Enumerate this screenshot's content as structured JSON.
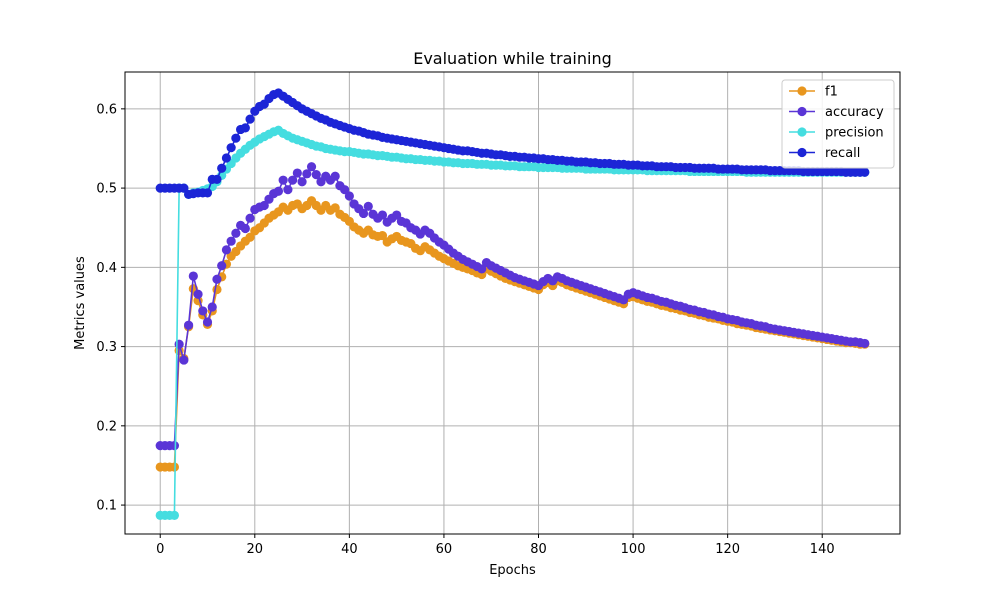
{
  "chart_data": {
    "type": "line",
    "title": "Evaluation while training",
    "xlabel": "Epochs",
    "ylabel": "Metrics values",
    "xlim": [
      -7.45,
      156.45
    ],
    "ylim": [
      0.0635,
      0.6465
    ],
    "xticks": [
      0,
      20,
      40,
      60,
      80,
      100,
      120,
      140
    ],
    "yticks": [
      0.1,
      0.2,
      0.3,
      0.4,
      0.5,
      0.6
    ],
    "grid": true,
    "legend_position": "top-right",
    "markers": "circle",
    "series": [
      {
        "name": "f1",
        "color": "#e8961e",
        "x": [
          0,
          1,
          2,
          3,
          4,
          5,
          6,
          7,
          8,
          9,
          10,
          11,
          12,
          13,
          14,
          15,
          16,
          17,
          18,
          19,
          20,
          21,
          22,
          23,
          24,
          25,
          26,
          27,
          28,
          29,
          30,
          31,
          32,
          33,
          34,
          35,
          36,
          37,
          38,
          39,
          40,
          41,
          42,
          43,
          44,
          45,
          46,
          47,
          48,
          49,
          50,
          51,
          52,
          53,
          54,
          55,
          56,
          57,
          58,
          59,
          60,
          61,
          62,
          63,
          64,
          65,
          66,
          67,
          68,
          69,
          70,
          71,
          72,
          73,
          74,
          75,
          76,
          77,
          78,
          79,
          80,
          81,
          82,
          83,
          84,
          85,
          86,
          87,
          88,
          89,
          90,
          91,
          92,
          93,
          94,
          95,
          96,
          97,
          98,
          99,
          100,
          101,
          102,
          103,
          104,
          105,
          106,
          107,
          108,
          109,
          110,
          111,
          112,
          113,
          114,
          115,
          116,
          117,
          118,
          119,
          120,
          121,
          122,
          123,
          124,
          125,
          126,
          127,
          128,
          129,
          130,
          131,
          132,
          133,
          134,
          135,
          136,
          137,
          138,
          139,
          140,
          141,
          142,
          143,
          144,
          145,
          146,
          147,
          148,
          149
        ],
        "values": [
          0.148,
          0.148,
          0.148,
          0.148,
          0.295,
          0.285,
          0.325,
          0.373,
          0.358,
          0.34,
          0.328,
          0.345,
          0.372,
          0.388,
          0.404,
          0.414,
          0.42,
          0.427,
          0.433,
          0.438,
          0.446,
          0.45,
          0.456,
          0.462,
          0.466,
          0.47,
          0.476,
          0.472,
          0.478,
          0.48,
          0.474,
          0.478,
          0.484,
          0.478,
          0.472,
          0.478,
          0.472,
          0.475,
          0.467,
          0.463,
          0.458,
          0.451,
          0.447,
          0.443,
          0.447,
          0.441,
          0.439,
          0.44,
          0.432,
          0.436,
          0.439,
          0.434,
          0.432,
          0.43,
          0.424,
          0.421,
          0.426,
          0.422,
          0.418,
          0.414,
          0.411,
          0.408,
          0.405,
          0.402,
          0.4,
          0.398,
          0.396,
          0.393,
          0.391,
          0.398,
          0.395,
          0.392,
          0.389,
          0.386,
          0.384,
          0.382,
          0.38,
          0.378,
          0.376,
          0.374,
          0.372,
          0.378,
          0.381,
          0.377,
          0.383,
          0.381,
          0.378,
          0.376,
          0.374,
          0.372,
          0.37,
          0.368,
          0.366,
          0.364,
          0.362,
          0.36,
          0.358,
          0.356,
          0.354,
          0.362,
          0.363,
          0.361,
          0.359,
          0.357,
          0.356,
          0.354,
          0.352,
          0.351,
          0.349,
          0.348,
          0.346,
          0.345,
          0.343,
          0.342,
          0.34,
          0.339,
          0.337,
          0.336,
          0.335,
          0.333,
          0.332,
          0.331,
          0.329,
          0.328,
          0.327,
          0.326,
          0.324,
          0.323,
          0.322,
          0.321,
          0.32,
          0.319,
          0.318,
          0.317,
          0.316,
          0.315,
          0.314,
          0.313,
          0.312,
          0.311,
          0.31,
          0.309,
          0.308,
          0.307,
          0.306,
          0.305,
          0.305,
          0.304,
          0.303,
          0.303
        ]
      },
      {
        "name": "accuracy",
        "color": "#5a35d6",
        "x": [
          0,
          1,
          2,
          3,
          4,
          5,
          6,
          7,
          8,
          9,
          10,
          11,
          12,
          13,
          14,
          15,
          16,
          17,
          18,
          19,
          20,
          21,
          22,
          23,
          24,
          25,
          26,
          27,
          28,
          29,
          30,
          31,
          32,
          33,
          34,
          35,
          36,
          37,
          38,
          39,
          40,
          41,
          42,
          43,
          44,
          45,
          46,
          47,
          48,
          49,
          50,
          51,
          52,
          53,
          54,
          55,
          56,
          57,
          58,
          59,
          60,
          61,
          62,
          63,
          64,
          65,
          66,
          67,
          68,
          69,
          70,
          71,
          72,
          73,
          74,
          75,
          76,
          77,
          78,
          79,
          80,
          81,
          82,
          83,
          84,
          85,
          86,
          87,
          88,
          89,
          90,
          91,
          92,
          93,
          94,
          95,
          96,
          97,
          98,
          99,
          100,
          101,
          102,
          103,
          104,
          105,
          106,
          107,
          108,
          109,
          110,
          111,
          112,
          113,
          114,
          115,
          116,
          117,
          118,
          119,
          120,
          121,
          122,
          123,
          124,
          125,
          126,
          127,
          128,
          129,
          130,
          131,
          132,
          133,
          134,
          135,
          136,
          137,
          138,
          139,
          140,
          141,
          142,
          143,
          144,
          145,
          146,
          147,
          148,
          149
        ],
        "values": [
          0.175,
          0.175,
          0.175,
          0.175,
          0.303,
          0.283,
          0.327,
          0.389,
          0.366,
          0.345,
          0.331,
          0.35,
          0.385,
          0.402,
          0.422,
          0.433,
          0.443,
          0.453,
          0.449,
          0.462,
          0.473,
          0.476,
          0.478,
          0.486,
          0.493,
          0.496,
          0.51,
          0.498,
          0.51,
          0.519,
          0.508,
          0.518,
          0.527,
          0.517,
          0.508,
          0.515,
          0.51,
          0.515,
          0.503,
          0.498,
          0.49,
          0.48,
          0.474,
          0.468,
          0.477,
          0.467,
          0.462,
          0.466,
          0.457,
          0.462,
          0.466,
          0.458,
          0.456,
          0.45,
          0.447,
          0.442,
          0.447,
          0.443,
          0.437,
          0.432,
          0.428,
          0.423,
          0.418,
          0.414,
          0.41,
          0.407,
          0.404,
          0.401,
          0.398,
          0.406,
          0.402,
          0.399,
          0.396,
          0.393,
          0.39,
          0.387,
          0.385,
          0.383,
          0.381,
          0.379,
          0.377,
          0.382,
          0.386,
          0.383,
          0.388,
          0.386,
          0.383,
          0.381,
          0.379,
          0.377,
          0.375,
          0.373,
          0.371,
          0.369,
          0.367,
          0.365,
          0.363,
          0.361,
          0.359,
          0.366,
          0.368,
          0.366,
          0.364,
          0.362,
          0.361,
          0.359,
          0.357,
          0.356,
          0.354,
          0.352,
          0.351,
          0.349,
          0.347,
          0.346,
          0.344,
          0.343,
          0.341,
          0.34,
          0.338,
          0.337,
          0.335,
          0.334,
          0.333,
          0.331,
          0.33,
          0.329,
          0.327,
          0.326,
          0.325,
          0.323,
          0.322,
          0.321,
          0.32,
          0.319,
          0.318,
          0.317,
          0.316,
          0.315,
          0.314,
          0.313,
          0.312,
          0.311,
          0.31,
          0.309,
          0.308,
          0.307,
          0.306,
          0.306,
          0.305,
          0.304
        ]
      },
      {
        "name": "precision",
        "color": "#45dde0",
        "x": [
          0,
          1,
          2,
          3,
          4,
          5,
          6,
          7,
          8,
          9,
          10,
          11,
          12,
          13,
          14,
          15,
          16,
          17,
          18,
          19,
          20,
          21,
          22,
          23,
          24,
          25,
          26,
          27,
          28,
          29,
          30,
          31,
          32,
          33,
          34,
          35,
          36,
          37,
          38,
          39,
          40,
          41,
          42,
          43,
          44,
          45,
          46,
          47,
          48,
          49,
          50,
          51,
          52,
          53,
          54,
          55,
          56,
          57,
          58,
          59,
          60,
          61,
          62,
          63,
          64,
          65,
          66,
          67,
          68,
          69,
          70,
          71,
          72,
          73,
          74,
          75,
          76,
          77,
          78,
          79,
          80,
          81,
          82,
          83,
          84,
          85,
          86,
          87,
          88,
          89,
          90,
          91,
          92,
          93,
          94,
          95,
          96,
          97,
          98,
          99,
          100,
          101,
          102,
          103,
          104,
          105,
          106,
          107,
          108,
          109,
          110,
          111,
          112,
          113,
          114,
          115,
          116,
          117,
          118,
          119,
          120,
          121,
          122,
          123,
          124,
          125,
          126,
          127,
          128,
          129,
          130,
          131,
          132,
          133,
          134,
          135,
          136,
          137,
          138,
          139,
          140,
          141,
          142,
          143,
          144,
          145,
          146,
          147,
          148,
          149
        ],
        "values": [
          0.087,
          0.087,
          0.087,
          0.087,
          0.5,
          0.5,
          0.492,
          0.494,
          0.495,
          0.497,
          0.499,
          0.502,
          0.508,
          0.516,
          0.524,
          0.531,
          0.538,
          0.544,
          0.549,
          0.554,
          0.558,
          0.562,
          0.565,
          0.568,
          0.571,
          0.573,
          0.569,
          0.566,
          0.563,
          0.561,
          0.559,
          0.557,
          0.555,
          0.553,
          0.552,
          0.55,
          0.549,
          0.548,
          0.547,
          0.546,
          0.546,
          0.545,
          0.544,
          0.543,
          0.543,
          0.542,
          0.541,
          0.541,
          0.54,
          0.539,
          0.539,
          0.538,
          0.537,
          0.537,
          0.536,
          0.536,
          0.535,
          0.535,
          0.534,
          0.534,
          0.533,
          0.533,
          0.532,
          0.532,
          0.531,
          0.531,
          0.531,
          0.53,
          0.53,
          0.53,
          0.529,
          0.529,
          0.529,
          0.528,
          0.528,
          0.528,
          0.527,
          0.527,
          0.527,
          0.527,
          0.526,
          0.526,
          0.526,
          0.526,
          0.526,
          0.525,
          0.525,
          0.525,
          0.525,
          0.525,
          0.524,
          0.524,
          0.524,
          0.524,
          0.524,
          0.524,
          0.523,
          0.523,
          0.523,
          0.523,
          0.523,
          0.523,
          0.523,
          0.522,
          0.522,
          0.522,
          0.522,
          0.522,
          0.522,
          0.522,
          0.522,
          0.522,
          0.521,
          0.521,
          0.521,
          0.521,
          0.521,
          0.521,
          0.521,
          0.521,
          0.521,
          0.521,
          0.521,
          0.521,
          0.52,
          0.52,
          0.52,
          0.52,
          0.52,
          0.52,
          0.52,
          0.52,
          0.52,
          0.52,
          0.52,
          0.52,
          0.52,
          0.52,
          0.52,
          0.52,
          0.52,
          0.52,
          0.52,
          0.52,
          0.52,
          0.52,
          0.52,
          0.52,
          0.52,
          0.52
        ]
      },
      {
        "name": "recall",
        "color": "#1c25d6",
        "x": [
          0,
          1,
          2,
          3,
          4,
          5,
          6,
          7,
          8,
          9,
          10,
          11,
          12,
          13,
          14,
          15,
          16,
          17,
          18,
          19,
          20,
          21,
          22,
          23,
          24,
          25,
          26,
          27,
          28,
          29,
          30,
          31,
          32,
          33,
          34,
          35,
          36,
          37,
          38,
          39,
          40,
          41,
          42,
          43,
          44,
          45,
          46,
          47,
          48,
          49,
          50,
          51,
          52,
          53,
          54,
          55,
          56,
          57,
          58,
          59,
          60,
          61,
          62,
          63,
          64,
          65,
          66,
          67,
          68,
          69,
          70,
          71,
          72,
          73,
          74,
          75,
          76,
          77,
          78,
          79,
          80,
          81,
          82,
          83,
          84,
          85,
          86,
          87,
          88,
          89,
          90,
          91,
          92,
          93,
          94,
          95,
          96,
          97,
          98,
          99,
          100,
          101,
          102,
          103,
          104,
          105,
          106,
          107,
          108,
          109,
          110,
          111,
          112,
          113,
          114,
          115,
          116,
          117,
          118,
          119,
          120,
          121,
          122,
          123,
          124,
          125,
          126,
          127,
          128,
          129,
          130,
          131,
          132,
          133,
          134,
          135,
          136,
          137,
          138,
          139,
          140,
          141,
          142,
          143,
          144,
          145,
          146,
          147,
          148,
          149
        ],
        "values": [
          0.5,
          0.5,
          0.5,
          0.5,
          0.5,
          0.5,
          0.492,
          0.493,
          0.494,
          0.494,
          0.494,
          0.511,
          0.511,
          0.525,
          0.538,
          0.551,
          0.563,
          0.574,
          0.576,
          0.587,
          0.597,
          0.603,
          0.606,
          0.613,
          0.618,
          0.62,
          0.616,
          0.612,
          0.608,
          0.604,
          0.6,
          0.597,
          0.594,
          0.591,
          0.588,
          0.586,
          0.583,
          0.581,
          0.579,
          0.577,
          0.575,
          0.573,
          0.572,
          0.57,
          0.568,
          0.567,
          0.566,
          0.564,
          0.563,
          0.562,
          0.561,
          0.56,
          0.559,
          0.558,
          0.557,
          0.556,
          0.555,
          0.554,
          0.553,
          0.552,
          0.551,
          0.55,
          0.549,
          0.548,
          0.547,
          0.547,
          0.546,
          0.545,
          0.544,
          0.544,
          0.543,
          0.542,
          0.542,
          0.541,
          0.54,
          0.54,
          0.539,
          0.539,
          0.538,
          0.538,
          0.537,
          0.537,
          0.536,
          0.536,
          0.535,
          0.535,
          0.534,
          0.534,
          0.533,
          0.533,
          0.533,
          0.532,
          0.532,
          0.531,
          0.531,
          0.531,
          0.53,
          0.53,
          0.53,
          0.529,
          0.529,
          0.529,
          0.528,
          0.528,
          0.528,
          0.527,
          0.527,
          0.527,
          0.527,
          0.526,
          0.526,
          0.526,
          0.526,
          0.525,
          0.525,
          0.525,
          0.525,
          0.525,
          0.524,
          0.524,
          0.524,
          0.524,
          0.524,
          0.523,
          0.523,
          0.523,
          0.523,
          0.523,
          0.523,
          0.522,
          0.522,
          0.522,
          0.522,
          0.522,
          0.522,
          0.522,
          0.521,
          0.521,
          0.521,
          0.521,
          0.521,
          0.521,
          0.521,
          0.521,
          0.521,
          0.52,
          0.52,
          0.52,
          0.52,
          0.52
        ]
      }
    ]
  }
}
